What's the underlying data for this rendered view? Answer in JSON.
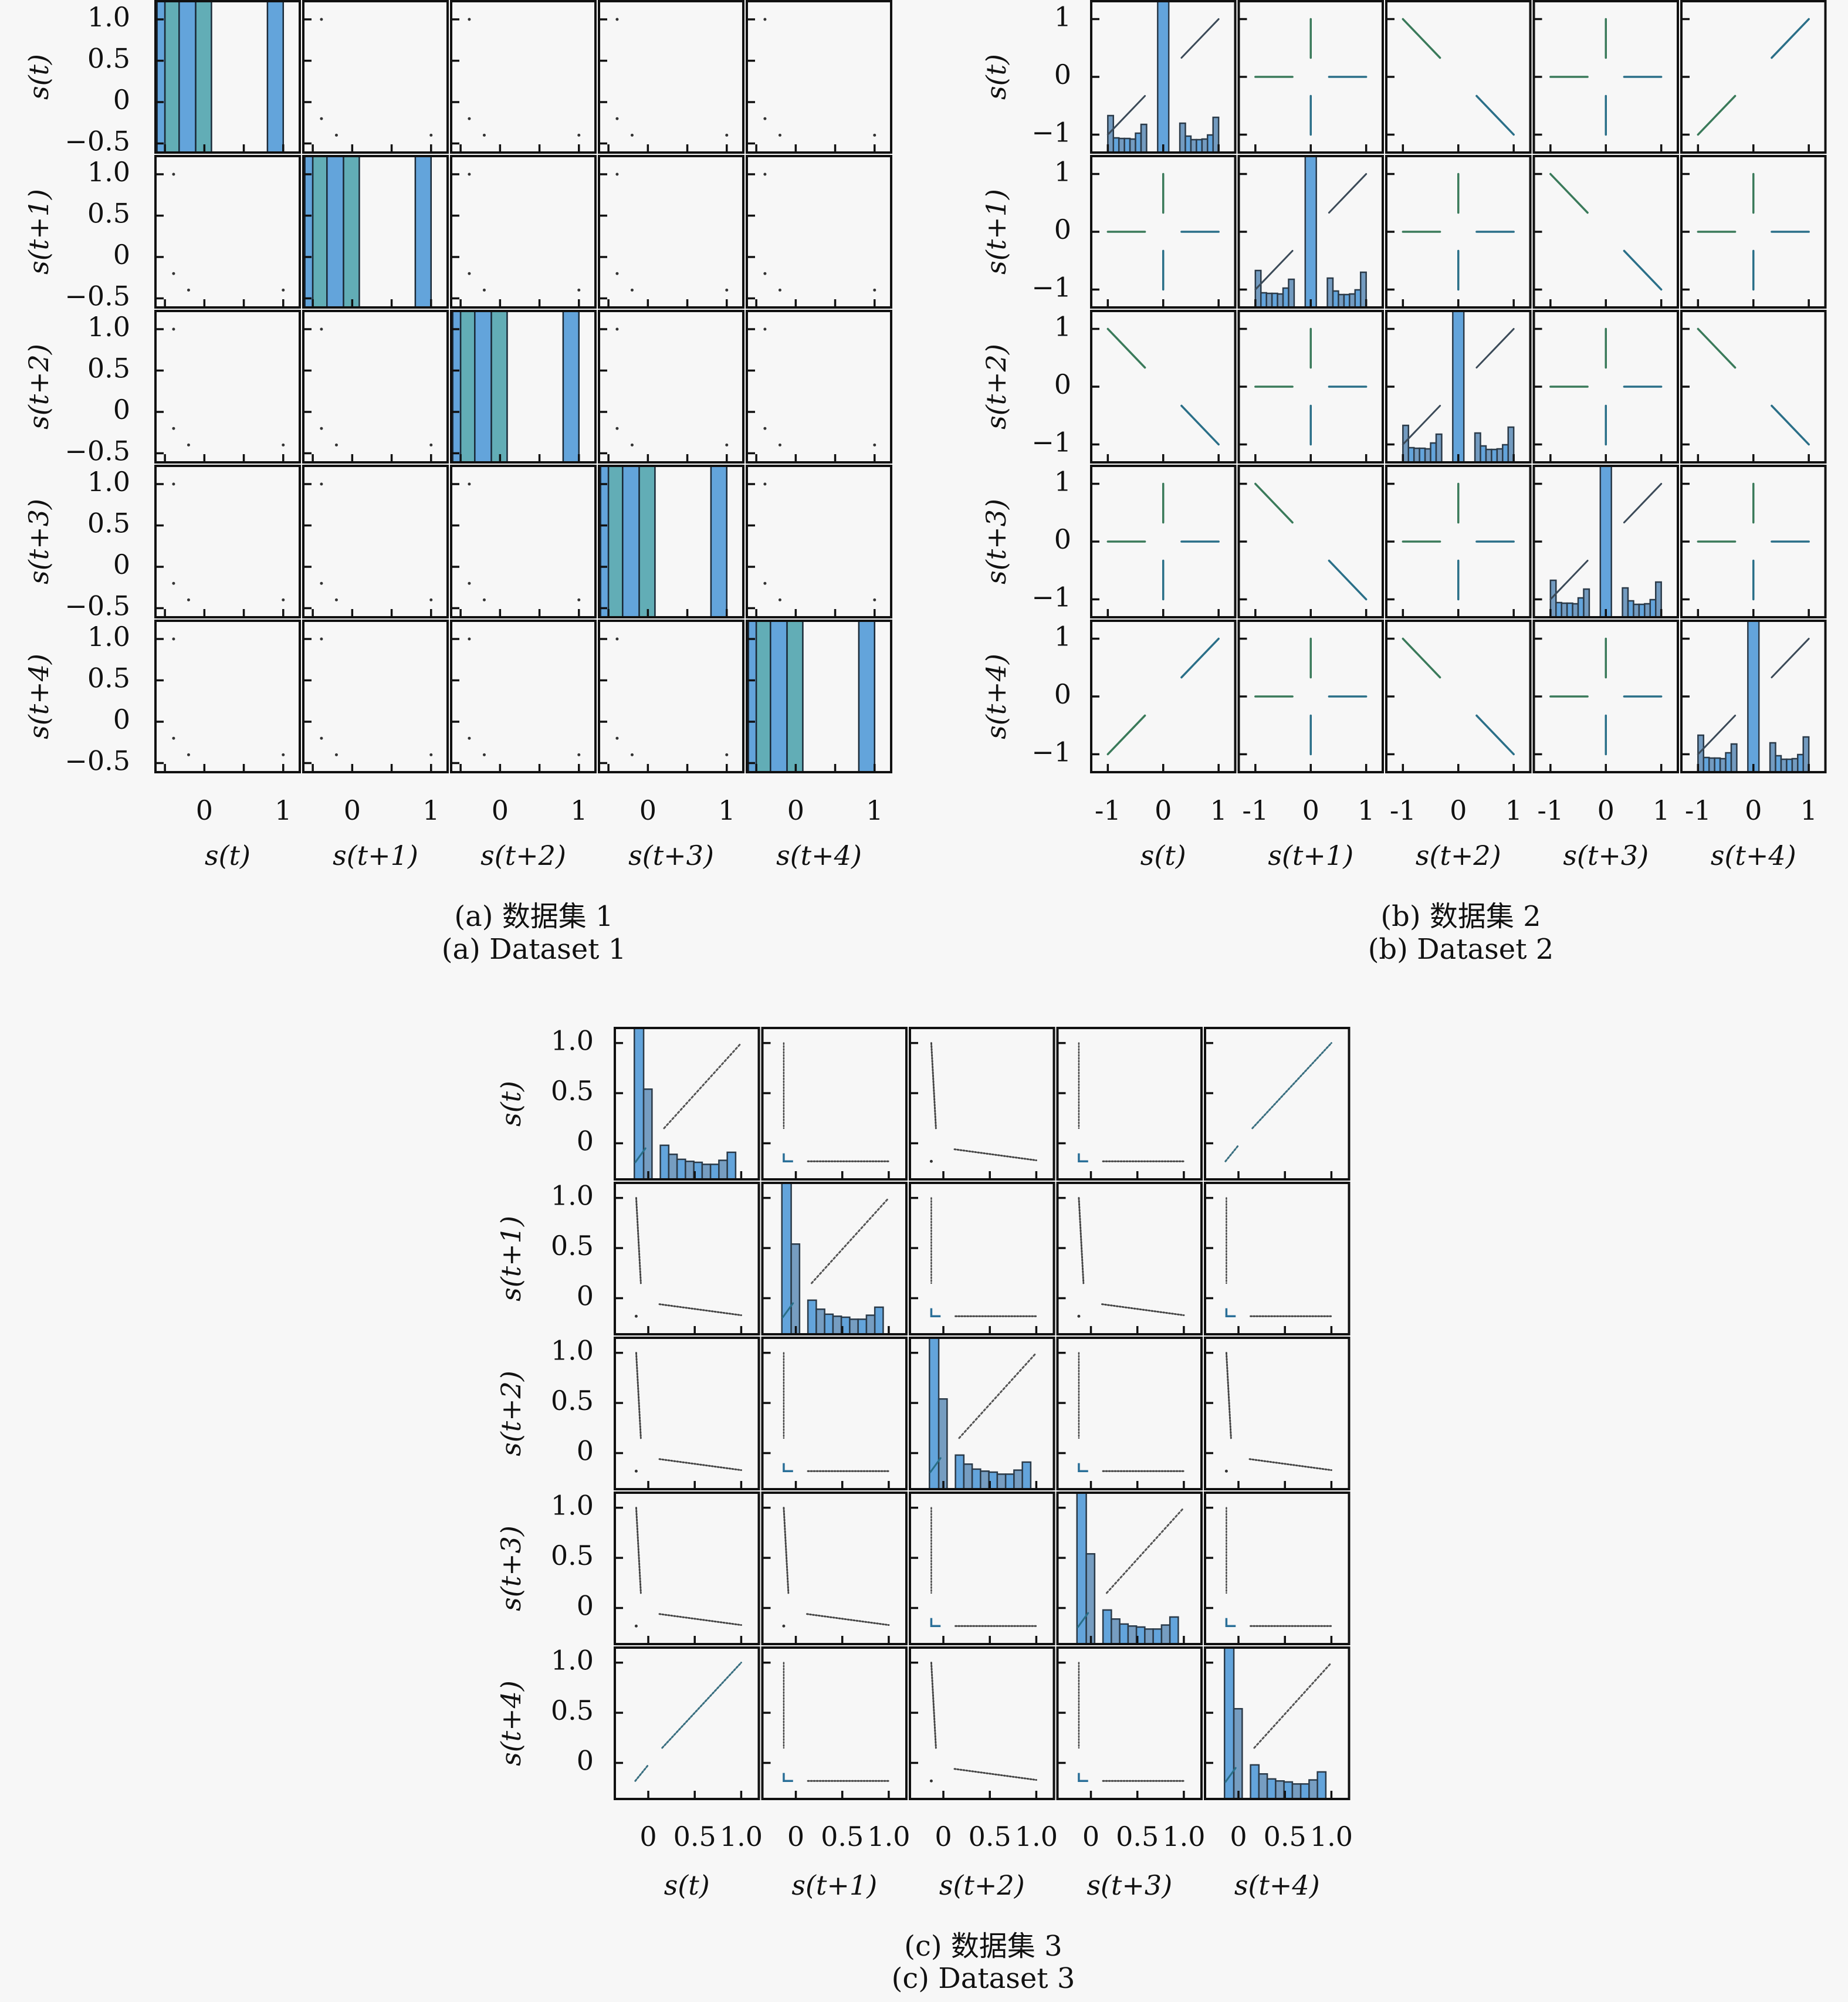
{
  "chart_data": [
    {
      "type": "scatter",
      "id": "a",
      "subtitle": "(a) 数据集 1",
      "subtitle_en": "(a) Dataset 1",
      "variables": [
        "s(t)",
        "s(t+1)",
        "s(t+2)",
        "s(t+3)",
        "s(t+4)"
      ],
      "xlim": [
        -0.62,
        1.21
      ],
      "ylim": [
        -0.61,
        1.22
      ],
      "yticks": [
        1.0,
        0.5,
        0,
        -0.5
      ],
      "ytick_labels": [
        "1.0",
        "0.5",
        "0",
        "−0.5"
      ],
      "xticks_minor": [
        -0.5,
        0,
        0.5,
        1
      ],
      "xticks": [
        0,
        1
      ],
      "xtick_labels": [
        "0",
        "1"
      ],
      "grid": false,
      "diagonal": "histogram",
      "histogram": {
        "bins": [
          [
            -0.6,
            -0.5
          ],
          [
            -0.5,
            -0.32
          ],
          [
            -0.32,
            -0.11
          ],
          [
            -0.11,
            0.09
          ],
          [
            0.8,
            1.0
          ]
        ],
        "counts": [
          1.0,
          1.0,
          1.0,
          1.0,
          1.0
        ],
        "yscale_note": "bars extend beyond top of axis"
      },
      "offdiag_points": [
        [
          -0.39,
          1.0
        ],
        [
          -0.39,
          -0.2
        ],
        [
          -0.2,
          -0.4
        ],
        [
          1.0,
          -0.4
        ]
      ],
      "colors": {
        "bar": "#5b9fd9",
        "bar_alt": "#5aa9b2",
        "edge": "#1b2a38",
        "point": "#333333"
      }
    },
    {
      "type": "scatter",
      "id": "b",
      "subtitle": "(b) 数据集 2",
      "subtitle_en": "(b) Dataset 2",
      "variables": [
        "s(t)",
        "s(t+1)",
        "s(t+2)",
        "s(t+3)",
        "s(t+4)"
      ],
      "xlim": [
        -1.3,
        1.3
      ],
      "ylim": [
        -1.31,
        1.31
      ],
      "yticks": [
        1,
        0,
        -1
      ],
      "ytick_labels": [
        "1",
        "0",
        "−1"
      ],
      "xticks": [
        -1,
        0,
        1
      ],
      "xtick_labels": [
        "-1",
        "0",
        "1"
      ],
      "grid": false,
      "diagonal": "histogram",
      "histogram": {
        "bins": [
          [
            -1.0,
            -0.9
          ],
          [
            -0.9,
            -0.8
          ],
          [
            -0.8,
            -0.7
          ],
          [
            -0.7,
            -0.6
          ],
          [
            -0.6,
            -0.5
          ],
          [
            -0.5,
            -0.4
          ],
          [
            -0.4,
            -0.3
          ],
          [
            -0.1,
            0.1
          ],
          [
            0.3,
            0.4
          ],
          [
            0.4,
            0.5
          ],
          [
            0.5,
            0.6
          ],
          [
            0.6,
            0.7
          ],
          [
            0.7,
            0.8
          ],
          [
            0.8,
            0.9
          ],
          [
            0.9,
            1.0
          ]
        ],
        "counts": [
          0.63,
          0.25,
          0.24,
          0.24,
          0.23,
          0.33,
          0.48,
          3.0,
          0.5,
          0.28,
          0.22,
          0.22,
          0.23,
          0.3,
          0.6
        ],
        "ylim": [
          -1.27,
          1.31
        ]
      },
      "pairs": {
        "same": [
          [
            0,
            0
          ],
          [
            0,
            4
          ],
          [
            1,
            1
          ],
          [
            2,
            2
          ],
          [
            3,
            3
          ],
          [
            4,
            4
          ],
          [
            4,
            0
          ]
        ],
        "anti": [
          [
            0,
            2
          ],
          [
            1,
            3
          ],
          [
            2,
            0
          ],
          [
            2,
            4
          ],
          [
            3,
            1
          ],
          [
            4,
            2
          ]
        ],
        "cross": [
          [
            0,
            1
          ],
          [
            0,
            3
          ],
          [
            1,
            0
          ],
          [
            1,
            2
          ],
          [
            1,
            4
          ],
          [
            2,
            1
          ],
          [
            2,
            3
          ],
          [
            3,
            0
          ],
          [
            3,
            2
          ],
          [
            3,
            4
          ],
          [
            4,
            1
          ],
          [
            4,
            3
          ]
        ]
      },
      "segments_same": [
        [
          [
            -1,
            -1
          ],
          [
            -0.33,
            -0.33
          ]
        ],
        [
          [
            0.33,
            0.33
          ],
          [
            1,
            1
          ]
        ]
      ],
      "segments_anti": [
        [
          [
            -1,
            1
          ],
          [
            -0.33,
            0.33
          ]
        ],
        [
          [
            0.33,
            -0.33
          ],
          [
            1,
            -1
          ]
        ]
      ],
      "segments_cross": [
        [
          [
            -1,
            0
          ],
          [
            -0.33,
            0
          ]
        ],
        [
          [
            0.33,
            0
          ],
          [
            1,
            0
          ]
        ],
        [
          [
            0,
            1
          ],
          [
            0,
            0.33
          ]
        ],
        [
          [
            0,
            -0.33
          ],
          [
            0,
            -1
          ]
        ]
      ],
      "colors": {
        "bar": "#6b96bd",
        "bar_alt": "#5b9fd9",
        "edge": "#2b3a48",
        "line": "#2a6f88",
        "line_alt": "#3a7a5a"
      }
    },
    {
      "type": "scatter",
      "id": "c",
      "subtitle": "(c) 数据集 3",
      "subtitle_en": "(c) Dataset 3",
      "variables": [
        "s(t)",
        "s(t+1)",
        "s(t+2)",
        "s(t+3)",
        "s(t+4)"
      ],
      "xlim": [
        -0.36,
        1.19
      ],
      "ylim": [
        -0.36,
        1.15
      ],
      "yticks": [
        1.0,
        0.5,
        0
      ],
      "ytick_labels": [
        "1.0",
        "0.5",
        "0"
      ],
      "xticks": [
        0,
        0.5,
        1.0
      ],
      "xtick_labels": [
        "0",
        "0.5",
        "1.0"
      ],
      "grid": false,
      "diagonal": "histogram",
      "histogram": {
        "bins": [
          [
            -0.15,
            -0.05
          ],
          [
            -0.05,
            0.04
          ],
          [
            0.13,
            0.22
          ],
          [
            0.22,
            0.31
          ],
          [
            0.31,
            0.4
          ],
          [
            0.4,
            0.49
          ],
          [
            0.49,
            0.58
          ],
          [
            0.58,
            0.67
          ],
          [
            0.67,
            0.76
          ],
          [
            0.76,
            0.85
          ],
          [
            0.85,
            0.94
          ]
        ],
        "counts": [
          3.0,
          0.9,
          0.34,
          0.25,
          0.2,
          0.18,
          0.17,
          0.15,
          0.15,
          0.19,
          0.27
        ],
        "ylim": [
          -0.36,
          1.15
        ]
      },
      "diag_line": [
        [
          0.17,
          0.15
        ],
        [
          1.0,
          1.0
        ]
      ],
      "diag_dash": [
        [
          -0.14,
          -0.19
        ],
        [
          -0.03,
          -0.05
        ]
      ],
      "pairs": {
        "same": [
          [
            0,
            4
          ],
          [
            4,
            0
          ]
        ],
        "steep_shallow": [
          [
            1,
            0
          ],
          [
            0,
            2
          ],
          [
            2,
            0
          ],
          [
            1,
            3
          ],
          [
            3,
            1
          ],
          [
            2,
            4
          ],
          [
            4,
            2
          ],
          [
            3,
            0
          ]
        ],
        "lshape": [
          [
            0,
            1
          ],
          [
            0,
            3
          ],
          [
            1,
            2
          ],
          [
            1,
            4
          ],
          [
            2,
            1
          ],
          [
            2,
            3
          ],
          [
            3,
            2
          ],
          [
            3,
            4
          ],
          [
            4,
            1
          ],
          [
            4,
            3
          ]
        ]
      },
      "steep_segment": [
        [
          -0.13,
          1.0
        ],
        [
          -0.08,
          0.15
        ]
      ],
      "shallow_segment": [
        [
          0.12,
          -0.06
        ],
        [
          1.0,
          -0.17
        ]
      ],
      "isolated_point": [
        -0.13,
        -0.18
      ],
      "lshape_vertical": [
        [
          -0.13,
          1.0
        ],
        [
          -0.13,
          0.15
        ]
      ],
      "lshape_corner": [
        [
          -0.13,
          -0.1
        ],
        [
          -0.13,
          -0.18
        ],
        [
          -0.03,
          -0.18
        ]
      ],
      "lshape_horizontal": [
        [
          0.13,
          -0.18
        ],
        [
          1.0,
          -0.18
        ]
      ],
      "same_segments": [
        [
          [
            -0.14,
            -0.18
          ],
          [
            0.0,
            -0.02
          ]
        ],
        [
          [
            0.15,
            0.15
          ],
          [
            1.0,
            1.0
          ]
        ]
      ],
      "colors": {
        "bar": "#5b9fd9",
        "bar_alt": "#6f98be",
        "edge": "#2b3a48",
        "line": "#444444",
        "accent": "#2a8a7a"
      }
    }
  ]
}
